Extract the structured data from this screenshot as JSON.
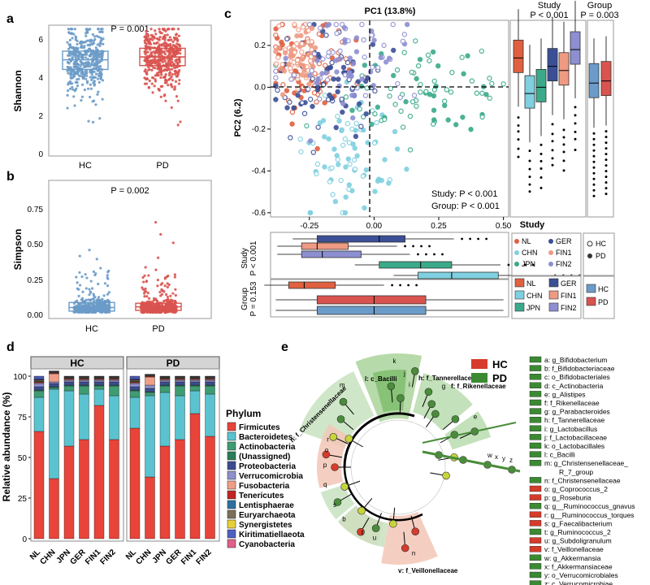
{
  "panel_labels": [
    "a",
    "b",
    "c",
    "d",
    "e"
  ],
  "colors": {
    "HC": "#6b9bc8",
    "PD": "#d9534f",
    "NL": "#e0603f",
    "CHN": "#7fd0e0",
    "JPN": "#3aaa8a",
    "GER": "#3b4f96",
    "FIN1": "#ef9a82",
    "FIN2": "#8d8fd2",
    "clade_green": "#4a8c3a",
    "clade_red": "#d63b2b",
    "ring_green": "#c8e2c0",
    "ring_red": "#f3c6b7"
  },
  "chart_data": [
    {
      "id": "a",
      "type": "scatter",
      "title": "",
      "ylabel": "Shannon",
      "categories": [
        "HC",
        "PD"
      ],
      "ylim": [
        0,
        6.8
      ],
      "yticks": [
        "0",
        "2",
        "4",
        "6"
      ],
      "annotation": "P = 0.001",
      "box": [
        {
          "name": "HC",
          "q1": 4.5,
          "median": 5.0,
          "q3": 5.45
        },
        {
          "name": "PD",
          "q1": 4.7,
          "median": 5.15,
          "q3": 5.6
        }
      ]
    },
    {
      "id": "b",
      "type": "scatter",
      "title": "",
      "ylabel": "Simpson",
      "categories": [
        "HC",
        "PD"
      ],
      "ylim": [
        0,
        0.95
      ],
      "yticks": [
        "0.00",
        "0.25",
        "0.50",
        "0.75"
      ],
      "annotation": "P = 0.002",
      "box": [
        {
          "name": "HC",
          "q1": 0.04,
          "median": 0.065,
          "q3": 0.1
        },
        {
          "name": "PD",
          "q1": 0.045,
          "median": 0.07,
          "q3": 0.095
        }
      ]
    },
    {
      "id": "c",
      "type": "scatter",
      "title": "PC1 (13.8%)",
      "ylabel": "PC2 (6.2)",
      "xlim": [
        -0.4,
        0.52
      ],
      "ylim": [
        -0.62,
        0.32
      ],
      "xticks": [
        "-0.25",
        "0.00",
        "0.25",
        "0.50"
      ],
      "yticks": [
        "0.2",
        "0.0",
        "-0.2",
        "-0.4",
        "-0.6"
      ],
      "stats": [
        "Study: P < 0.001",
        "Group: P < 0.001"
      ],
      "right_boxes_titles": [
        "Study\nP < 0.001",
        "Group\nP = 0.003"
      ],
      "bottom_boxes_labels": [
        "Study\nP < 0.001",
        "Group\nP = 0.153"
      ],
      "x_axis_title": "Study",
      "legend_study": [
        "NL",
        "CHN",
        "JPN",
        "GER",
        "FIN1",
        "FIN2"
      ],
      "legend_group": [
        "HC",
        "PD"
      ]
    },
    {
      "id": "d",
      "type": "bar",
      "ylabel": "Relative abundance (%)",
      "facets": [
        "HC",
        "PD"
      ],
      "categories": [
        "NL",
        "CHN",
        "JPN",
        "GER",
        "FIN1",
        "FIN2"
      ],
      "yticks": [
        "0",
        "25",
        "50",
        "75",
        "100"
      ],
      "ylim": [
        0,
        100
      ],
      "legend_title": "Phylum",
      "series": [
        {
          "name": "Firmicutes",
          "color": "#e8443a",
          "HC": [
            66,
            37,
            57,
            61,
            82,
            61
          ],
          "PD": [
            68,
            38,
            57,
            61,
            77,
            63
          ]
        },
        {
          "name": "Bacteroidetes",
          "color": "#5bc3cf",
          "HC": [
            21,
            55,
            34,
            28,
            10,
            27
          ],
          "PD": [
            19,
            50,
            33,
            27,
            14,
            26
          ]
        },
        {
          "name": "Actinobacteria",
          "color": "#3e9c72",
          "HC": [
            4,
            1,
            3,
            5,
            2,
            6
          ],
          "PD": [
            4,
            2,
            4,
            6,
            3,
            5
          ]
        },
        {
          "name": "(Unassigned)",
          "color": "#2b7d58",
          "HC": [
            0.5,
            0.5,
            0.5,
            0.5,
            0.5,
            0.5
          ],
          "PD": [
            0.5,
            0.5,
            0.5,
            0.5,
            0.5,
            0.5
          ]
        },
        {
          "name": "Proteobacteria",
          "color": "#3c4c8f",
          "HC": [
            2,
            2,
            2,
            2,
            2,
            2
          ],
          "PD": [
            2,
            2,
            2,
            2,
            2,
            2
          ]
        },
        {
          "name": "Verrucomicrobia",
          "color": "#8e8fcc",
          "HC": [
            2,
            1,
            1,
            1,
            1,
            1
          ],
          "PD": [
            2,
            2,
            1,
            1,
            1,
            1
          ]
        },
        {
          "name": "Fusobacteria",
          "color": "#ef9e86",
          "HC": [
            0.5,
            5,
            0.5,
            0.5,
            0.5,
            0.5
          ],
          "PD": [
            0.5,
            5,
            0.5,
            0.5,
            0.5,
            0.5
          ]
        },
        {
          "name": "Tenericutes",
          "color": "#c02424",
          "HC": [
            0.5,
            0.5,
            0.5,
            0.5,
            0.5,
            0.5
          ],
          "PD": [
            0.5,
            0.5,
            0.5,
            0.5,
            0.5,
            0.5
          ]
        },
        {
          "name": "Lentisphaerae",
          "color": "#2e6fa0",
          "HC": [
            0.3,
            0.3,
            0.3,
            0.3,
            0.3,
            0.3
          ],
          "PD": [
            0.3,
            0.3,
            0.3,
            0.3,
            0.3,
            0.3
          ]
        },
        {
          "name": "Euryarchaeota",
          "color": "#7b6f5a",
          "HC": [
            0.7,
            0.3,
            0.4,
            0.5,
            0.4,
            0.5
          ],
          "PD": [
            0.7,
            0.3,
            0.4,
            0.5,
            0.4,
            0.5
          ]
        },
        {
          "name": "Synergistetes",
          "color": "#e6d03a",
          "HC": [
            0.2,
            0.2,
            0.2,
            0.2,
            0.2,
            0.2
          ],
          "PD": [
            0.2,
            0.2,
            0.2,
            0.2,
            0.2,
            0.2
          ]
        },
        {
          "name": "Kiritimatiellaeota",
          "color": "#4f5fc0",
          "HC": [
            0.2,
            0.2,
            0.2,
            0.2,
            0.2,
            0.2
          ],
          "PD": [
            0.2,
            0.2,
            0.2,
            0.2,
            0.2,
            0.2
          ]
        },
        {
          "name": "Cyanobacteria",
          "color": "#e0608a",
          "HC": [
            0.2,
            0.2,
            0.2,
            0.2,
            0.2,
            0.2
          ],
          "PD": [
            0.2,
            0.2,
            0.2,
            0.2,
            0.2,
            0.2
          ]
        }
      ]
    }
  ],
  "cladogram": {
    "legend": [
      "HC",
      "PD"
    ],
    "clade_labels": [
      {
        "text": "l: c_Bacilli",
        "grp": "HC"
      },
      {
        "text": "h: f_Tannerellaceae",
        "grp": "HC"
      },
      {
        "text": "f: f_Rikenellaceae",
        "grp": "HC"
      },
      {
        "text": "n: f_Christensenellaceae",
        "grp": "HC"
      },
      {
        "text": "v: f_Veillonellaceae",
        "grp": "PD"
      }
    ],
    "sector_letters": [
      "k",
      "j",
      "i",
      "g",
      "e",
      "m",
      "q",
      "s",
      "b",
      "t",
      "u",
      "n",
      "p",
      "o",
      "r",
      "d",
      "c",
      "a",
      "x",
      "z",
      "y"
    ],
    "key": [
      {
        "text": "a: g_Bifidobacterium",
        "grp": "HC"
      },
      {
        "text": "b: f_Bifidobacteriaceae",
        "grp": "HC"
      },
      {
        "text": "c: o_Bifidobacteriales",
        "grp": "HC"
      },
      {
        "text": "d: c_Actinobacteria",
        "grp": "HC"
      },
      {
        "text": "e: g_Alistipes",
        "grp": "HC"
      },
      {
        "text": "f: f_Rikenellaceae",
        "grp": "HC"
      },
      {
        "text": "g: g_Parabacteroides",
        "grp": "HC"
      },
      {
        "text": "h: f_Tannerellaceae",
        "grp": "HC"
      },
      {
        "text": "i: g_Lactobacillus",
        "grp": "HC"
      },
      {
        "text": "j: f_Lactobacillaceae",
        "grp": "HC"
      },
      {
        "text": "k: o_Lactobacillales",
        "grp": "HC"
      },
      {
        "text": "l: c_Bacilli",
        "grp": "HC"
      },
      {
        "text": "m: g_Christensenellaceae_",
        "grp": "HC"
      },
      {
        "text": "R_7_group",
        "grp": "none"
      },
      {
        "text": "n: f_Christensenellaceae",
        "grp": "HC"
      },
      {
        "text": "o: g_Coprococcus_2",
        "grp": "PD"
      },
      {
        "text": "p: g_Roseburia",
        "grp": "PD"
      },
      {
        "text": "q: g__Ruminococcus_gnavus",
        "grp": "HC"
      },
      {
        "text": "r: g__Ruminococcus_torques",
        "grp": "PD"
      },
      {
        "text": "s: g_Faecalibacterium",
        "grp": "PD"
      },
      {
        "text": "t: g_Ruminococcus_2",
        "grp": "HC"
      },
      {
        "text": "u: g_Subdoligranulum",
        "grp": "PD"
      },
      {
        "text": "v: f_Veillonellaceae",
        "grp": "PD"
      },
      {
        "text": "w: g_Akkermansia",
        "grp": "HC"
      },
      {
        "text": "x: f_Akkermansiaceae",
        "grp": "HC"
      },
      {
        "text": "y: o_Verrucomicrobiales",
        "grp": "HC"
      },
      {
        "text": "z: c_Verrucomicrobiae",
        "grp": "HC"
      }
    ],
    "ray_letters": [
      "w",
      "x",
      "y",
      "z"
    ]
  }
}
